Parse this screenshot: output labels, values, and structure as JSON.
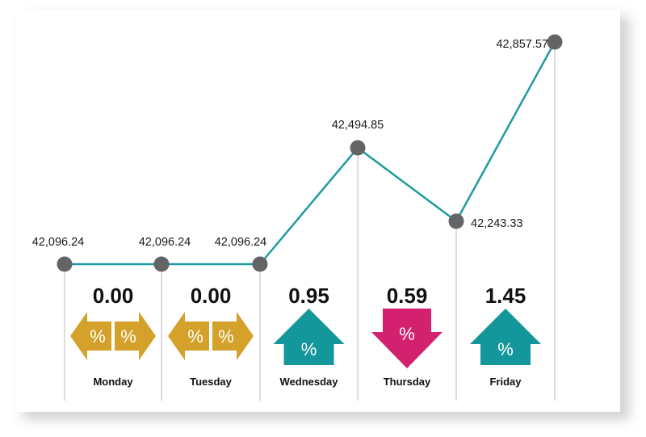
{
  "chart_data": {
    "type": "line",
    "title": "",
    "xlabel": "",
    "ylabel": "",
    "ylim": [
      42000,
      42900
    ],
    "grid": false,
    "legend": "none",
    "points": [
      {
        "value": 42096.24,
        "value_label": "42,096.24",
        "day": "",
        "change": "",
        "direction": ""
      },
      {
        "value": 42096.24,
        "value_label": "42,096.24",
        "day": "Monday",
        "change": "0.00",
        "direction": "flat"
      },
      {
        "value": 42096.24,
        "value_label": "42,096.24",
        "day": "Tuesday",
        "change": "0.00",
        "direction": "flat"
      },
      {
        "value": 42494.85,
        "value_label": "42,494.85",
        "day": "Wednesday",
        "change": "0.95",
        "direction": "up"
      },
      {
        "value": 42243.33,
        "value_label": "42,243.33",
        "day": "Thursday",
        "change": "0.59",
        "direction": "down"
      },
      {
        "value": 42857.57,
        "value_label": "42,857.57",
        "day": "Friday",
        "change": "1.45",
        "direction": "up"
      }
    ],
    "percent_symbol": "%",
    "colors": {
      "line": "#1f9aa0",
      "marker": "#636466",
      "flat": "#d4a22a",
      "up": "#13979a",
      "down": "#d3206f",
      "divider": "#bdbdbd"
    }
  }
}
